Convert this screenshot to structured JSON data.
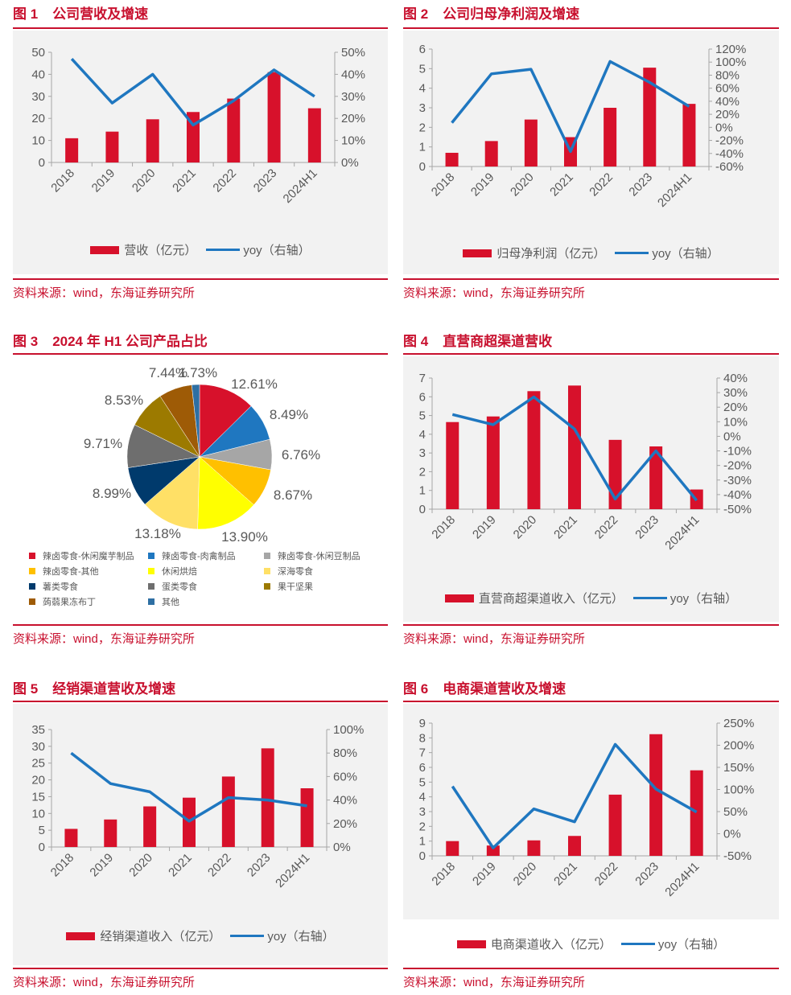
{
  "source_text": "资料来源：wind，东海证券研究所",
  "colors": {
    "bar": "#d7112b",
    "line": "#1f77c0",
    "accent": "#c8102e"
  },
  "charts": [
    {
      "num": "图 1",
      "title": "公司营收及增速",
      "bar_label": "营收（亿元）",
      "line_label": "yoy（右轴）",
      "categories": [
        "2018",
        "2019",
        "2020",
        "2021",
        "2022",
        "2023",
        "2024H1"
      ],
      "left_ticks": [
        "0",
        "10",
        "20",
        "30",
        "40",
        "50"
      ],
      "right_ticks": [
        "0%",
        "10%",
        "20%",
        "30%",
        "40%",
        "50%"
      ]
    },
    {
      "num": "图 2",
      "title": "公司归母净利润及增速",
      "bar_label": "归母净利润（亿元）",
      "line_label": "yoy（右轴）",
      "categories": [
        "2018",
        "2019",
        "2020",
        "2021",
        "2022",
        "2023",
        "2024H1"
      ],
      "left_ticks": [
        "0",
        "1",
        "2",
        "3",
        "4",
        "5",
        "6"
      ],
      "right_ticks": [
        "-60%",
        "-40%",
        "-20%",
        "0%",
        "20%",
        "40%",
        "60%",
        "80%",
        "100%",
        "120%"
      ]
    },
    {
      "num": "图 3",
      "title": "2024 年 H1 公司产品占比",
      "slice_labels": [
        "12.61%",
        "8.49%",
        "6.76%",
        "8.67%",
        "13.90%",
        "13.18%",
        "8.99%",
        "9.71%",
        "8.53%",
        "7.44%",
        "1.73%"
      ],
      "legend": [
        {
          "label": "辣卤零食-休闲魔芋制品",
          "color": "#d7112b"
        },
        {
          "label": "辣卤零食-肉禽制品",
          "color": "#1f77c0"
        },
        {
          "label": "辣卤零食-休闲豆制品",
          "color": "#a6a6a6"
        },
        {
          "label": "辣卤零食-其他",
          "color": "#ffc000"
        },
        {
          "label": "休闲烘焙",
          "color": "#ffff00"
        },
        {
          "label": "深海零食",
          "color": "#ffe066"
        },
        {
          "label": "薯类零食",
          "color": "#003a6c"
        },
        {
          "label": "蛋类零食",
          "color": "#6e6e6e"
        },
        {
          "label": "果干坚果",
          "color": "#9c7a00"
        },
        {
          "label": "蒟蒻果冻布丁",
          "color": "#9e5b06"
        },
        {
          "label": "其他",
          "color": "#2e6fa3"
        }
      ]
    },
    {
      "num": "图 4",
      "title": "直营商超渠道营收",
      "bar_label": "直营商超渠道收入（亿元）",
      "line_label": "yoy（右轴）",
      "categories": [
        "2018",
        "2019",
        "2020",
        "2021",
        "2022",
        "2023",
        "2024H1"
      ],
      "left_ticks": [
        "0",
        "1",
        "2",
        "3",
        "4",
        "5",
        "6",
        "7"
      ],
      "right_ticks": [
        "-50%",
        "-40%",
        "-30%",
        "-20%",
        "-10%",
        "0%",
        "10%",
        "20%",
        "30%",
        "40%"
      ]
    },
    {
      "num": "图 5",
      "title": "经销渠道营收及增速",
      "bar_label": "经销渠道收入（亿元）",
      "line_label": "yoy（右轴）",
      "categories": [
        "2018",
        "2019",
        "2020",
        "2021",
        "2022",
        "2023",
        "2024H1"
      ],
      "left_ticks": [
        "0",
        "5",
        "10",
        "15",
        "20",
        "25",
        "30",
        "35"
      ],
      "right_ticks": [
        "0%",
        "20%",
        "40%",
        "60%",
        "80%",
        "100%"
      ]
    },
    {
      "num": "图 6",
      "title": "电商渠道营收及增速",
      "bar_label": "电商渠道收入（亿元）",
      "line_label": "yoy（右轴）",
      "categories": [
        "2018",
        "2019",
        "2020",
        "2021",
        "2022",
        "2023",
        "2024H1"
      ],
      "left_ticks": [
        "0",
        "1",
        "2",
        "3",
        "4",
        "5",
        "6",
        "7",
        "8",
        "9"
      ],
      "right_ticks": [
        "-50%",
        "0%",
        "50%",
        "100%",
        "150%",
        "200%",
        "250%"
      ]
    }
  ],
  "chart_data": [
    {
      "type": "bar",
      "title": "公司营收及增速",
      "categories": [
        "2018",
        "2019",
        "2020",
        "2021",
        "2022",
        "2023",
        "2024H1"
      ],
      "ylim": [
        0,
        50
      ],
      "y2lim": [
        0,
        50
      ],
      "legend": "bottom",
      "series": [
        {
          "name": "营收（亿元）",
          "axis": "left",
          "values": [
            11.0,
            14.0,
            19.6,
            22.9,
            29.0,
            41.0,
            24.6
          ]
        },
        {
          "name": "yoy（右轴）",
          "axis": "right",
          "values": [
            47,
            27,
            40,
            17,
            28,
            42,
            30
          ]
        }
      ]
    },
    {
      "type": "bar",
      "title": "公司归母净利润及增速",
      "categories": [
        "2018",
        "2019",
        "2020",
        "2021",
        "2022",
        "2023",
        "2024H1"
      ],
      "ylim": [
        0,
        6
      ],
      "y2lim": [
        -60,
        120
      ],
      "legend": "bottom",
      "series": [
        {
          "name": "归母净利润（亿元）",
          "axis": "left",
          "values": [
            0.7,
            1.3,
            2.4,
            1.5,
            3.0,
            5.05,
            3.2
          ]
        },
        {
          "name": "yoy（右轴）",
          "axis": "right",
          "values": [
            7,
            82,
            89,
            -37,
            101,
            69,
            32
          ]
        }
      ]
    },
    {
      "type": "pie",
      "title": "2024 年 H1 公司产品占比",
      "categories": [
        "辣卤零食-休闲魔芋制品",
        "辣卤零食-肉禽制品",
        "辣卤零食-休闲豆制品",
        "辣卤零食-其他",
        "休闲烘焙",
        "深海零食",
        "薯类零食",
        "蛋类零食",
        "果干坚果",
        "蒟蒻果冻布丁",
        "其他"
      ],
      "values": [
        12.61,
        8.49,
        6.76,
        8.67,
        13.9,
        13.18,
        8.99,
        9.71,
        8.53,
        7.44,
        1.73
      ],
      "legend": "bottom"
    },
    {
      "type": "bar",
      "title": "直营商超渠道营收",
      "categories": [
        "2018",
        "2019",
        "2020",
        "2021",
        "2022",
        "2023",
        "2024H1"
      ],
      "ylim": [
        0,
        7
      ],
      "y2lim": [
        -50,
        40
      ],
      "legend": "bottom",
      "series": [
        {
          "name": "直营商超渠道收入（亿元）",
          "axis": "left",
          "values": [
            4.65,
            4.95,
            6.3,
            6.6,
            3.7,
            3.35,
            1.05
          ]
        },
        {
          "name": "yoy（右轴）",
          "axis": "right",
          "values": [
            15,
            8,
            27,
            5,
            -43,
            -10,
            -44
          ]
        }
      ]
    },
    {
      "type": "bar",
      "title": "经销渠道营收及增速",
      "categories": [
        "2018",
        "2019",
        "2020",
        "2021",
        "2022",
        "2023",
        "2024H1"
      ],
      "ylim": [
        0,
        35
      ],
      "y2lim": [
        0,
        100
      ],
      "legend": "bottom",
      "series": [
        {
          "name": "经销渠道收入（亿元）",
          "axis": "left",
          "values": [
            5.4,
            8.2,
            12.1,
            14.7,
            21.0,
            29.4,
            17.5
          ]
        },
        {
          "name": "yoy（右轴）",
          "axis": "right",
          "values": [
            80,
            54,
            47,
            22,
            42,
            40,
            35
          ]
        }
      ]
    },
    {
      "type": "bar",
      "title": "电商渠道营收及增速",
      "categories": [
        "2018",
        "2019",
        "2020",
        "2021",
        "2022",
        "2023",
        "2024H1"
      ],
      "ylim": [
        0,
        9
      ],
      "y2lim": [
        -50,
        250
      ],
      "legend": "bottom",
      "series": [
        {
          "name": "电商渠道收入（亿元）",
          "axis": "left",
          "values": [
            1.0,
            0.7,
            1.05,
            1.35,
            4.15,
            8.25,
            5.8
          ]
        },
        {
          "name": "yoy（右轴）",
          "axis": "right",
          "values": [
            107,
            -32,
            56,
            27,
            202,
            101,
            49
          ]
        }
      ]
    }
  ]
}
